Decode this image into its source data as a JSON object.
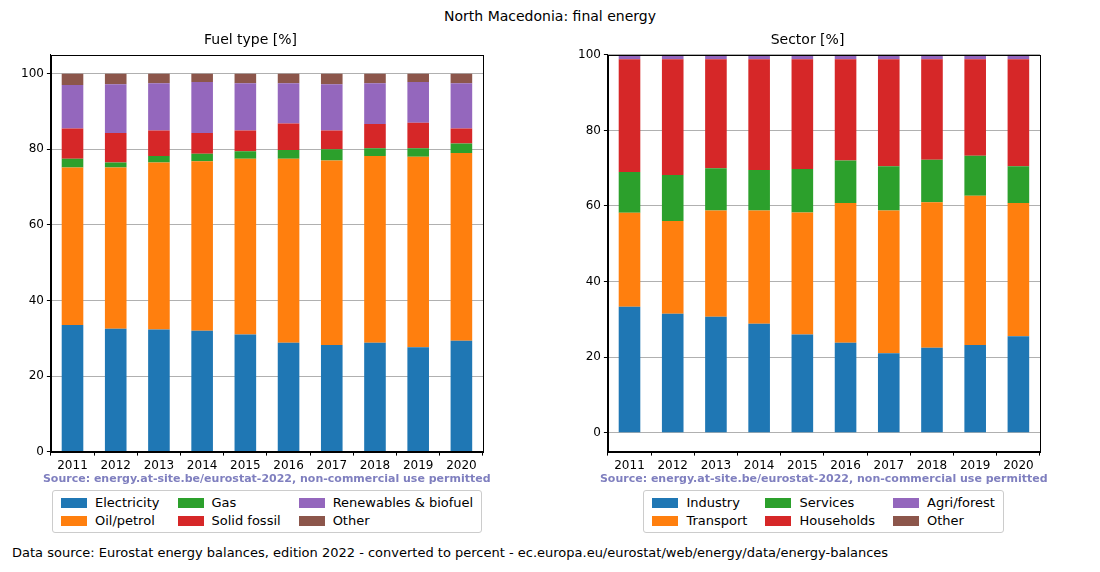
{
  "title": "North Macedonia: final energy",
  "footer": "Data source: Eurostat energy balances, edition 2022 - converted to percent - ec.europa.eu/eurostat/web/energy/data/energy-balances",
  "chart_data": [
    {
      "type": "bar",
      "title": "Fuel type [%]",
      "stacked": true,
      "grid": "y",
      "legend": "bottom",
      "annotations": [
        "Source: energy.at-site.be/eurostat-2022, non-commercial use permitted"
      ],
      "categories": [
        "2011",
        "2012",
        "2013",
        "2014",
        "2015",
        "2016",
        "2017",
        "2018",
        "2019",
        "2020"
      ],
      "ylim": [
        0,
        105
      ],
      "yticks": [
        0,
        20,
        40,
        60,
        80,
        100
      ],
      "series": [
        {
          "name": "Electricity",
          "color": "#1f77b4",
          "values": [
            33.5,
            32.5,
            32.3,
            32.0,
            31.0,
            28.8,
            28.2,
            28.8,
            27.6,
            29.3
          ]
        },
        {
          "name": "Oil/petrol",
          "color": "#ff7f0e",
          "values": [
            41.7,
            42.7,
            44.2,
            44.8,
            46.5,
            48.7,
            48.8,
            49.4,
            50.4,
            49.7
          ]
        },
        {
          "name": "Gas",
          "color": "#2ca02c",
          "values": [
            2.3,
            1.3,
            1.7,
            2.0,
            2.0,
            2.3,
            3.0,
            2.1,
            2.3,
            2.5
          ]
        },
        {
          "name": "Solid fossil",
          "color": "#d62728",
          "values": [
            8.0,
            7.8,
            6.8,
            5.5,
            5.5,
            7.0,
            5.0,
            6.4,
            6.7,
            4.0
          ]
        },
        {
          "name": "Renewables & biofuel",
          "color": "#9467bd",
          "values": [
            11.5,
            12.9,
            12.5,
            13.5,
            12.5,
            10.7,
            12.2,
            10.8,
            10.8,
            12.0
          ]
        },
        {
          "name": "Other",
          "color": "#8c564b",
          "values": [
            3.0,
            2.8,
            2.5,
            2.2,
            2.5,
            2.5,
            2.8,
            2.5,
            2.2,
            2.5
          ]
        }
      ]
    },
    {
      "type": "bar",
      "title": "Sector [%]",
      "stacked": true,
      "grid": "y",
      "legend": "bottom",
      "annotations": [
        "Source: energy.at-site.be/eurostat-2022, non-commercial use permitted"
      ],
      "categories": [
        "2011",
        "2012",
        "2013",
        "2014",
        "2015",
        "2016",
        "2017",
        "2018",
        "2019",
        "2020"
      ],
      "ylim": [
        -5,
        100
      ],
      "yticks": [
        0,
        20,
        40,
        60,
        80,
        100
      ],
      "series": [
        {
          "name": "Industry",
          "color": "#1f77b4",
          "values": [
            33.3,
            31.5,
            30.7,
            28.8,
            26.0,
            23.8,
            21.0,
            22.5,
            23.2,
            25.5
          ]
        },
        {
          "name": "Transport",
          "color": "#ff7f0e",
          "values": [
            24.9,
            24.5,
            28.1,
            30.0,
            32.3,
            37.0,
            37.8,
            38.5,
            39.5,
            35.3
          ]
        },
        {
          "name": "Services",
          "color": "#2ca02c",
          "values": [
            10.8,
            12.2,
            11.2,
            10.7,
            11.5,
            11.2,
            11.7,
            11.2,
            10.6,
            9.7
          ]
        },
        {
          "name": "Households",
          "color": "#d62728",
          "values": [
            29.8,
            30.6,
            28.8,
            29.3,
            29.0,
            26.8,
            28.3,
            26.6,
            25.5,
            28.3
          ]
        },
        {
          "name": "Agri/forest",
          "color": "#9467bd",
          "values": [
            1.0,
            1.0,
            1.0,
            1.0,
            1.0,
            1.0,
            1.0,
            1.0,
            1.0,
            1.0
          ]
        },
        {
          "name": "Other",
          "color": "#8c564b",
          "values": [
            0.2,
            0.2,
            0.2,
            0.2,
            0.2,
            0.2,
            0.2,
            0.2,
            0.2,
            0.2
          ]
        }
      ]
    }
  ]
}
